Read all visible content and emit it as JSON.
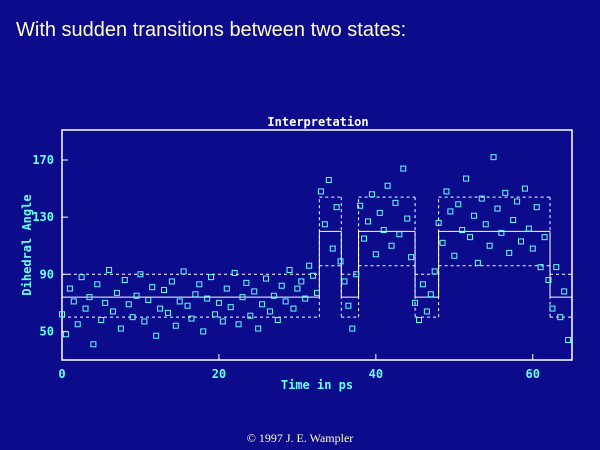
{
  "chart_data": {
    "type": "scatter",
    "slide_title": "With sudden transitions between two states:",
    "title": "Interpretation",
    "x_label": "Time in ps",
    "y_label": "Dihedral Angle",
    "footer": "© 1997 J. E. Wampler",
    "color": "#66ffff",
    "xlim": [
      0,
      65
    ],
    "ylim": [
      30,
      191
    ],
    "xticks": [
      0,
      20,
      40,
      60
    ],
    "yticks": [
      50,
      90,
      130,
      170
    ],
    "x": [
      0,
      0.5,
      1,
      1.5,
      2,
      2.5,
      3,
      3.5,
      4,
      4.5,
      5,
      5.5,
      6,
      6.5,
      7,
      7.5,
      8,
      8.5,
      9,
      9.5,
      10,
      10.5,
      11,
      11.5,
      12,
      12.5,
      13,
      13.5,
      14,
      14.5,
      15,
      15.5,
      16,
      16.5,
      17,
      17.5,
      18,
      18.5,
      19,
      19.5,
      20,
      20.5,
      21,
      21.5,
      22,
      22.5,
      23,
      23.5,
      24,
      24.5,
      25,
      25.5,
      26,
      26.5,
      27,
      27.5,
      28,
      28.5,
      29,
      29.5,
      30,
      30.5,
      31,
      31.5,
      32,
      32.5,
      33,
      33.5,
      34,
      34.5,
      35,
      35.5,
      36,
      36.5,
      37,
      37.5,
      38,
      38.5,
      39,
      39.5,
      40,
      40.5,
      41,
      41.5,
      42,
      42.5,
      43,
      43.5,
      44,
      44.5,
      45,
      45.5,
      46,
      46.5,
      47,
      47.5,
      48,
      48.5,
      49,
      49.5,
      50,
      50.5,
      51,
      51.5,
      52,
      52.5,
      53,
      53.5,
      54,
      54.5,
      55,
      55.5,
      56,
      56.5,
      57,
      57.5,
      58,
      58.5,
      59,
      59.5,
      60,
      60.5,
      61,
      61.5,
      62,
      62.5,
      63,
      63.5,
      64,
      64.5
    ],
    "values": [
      62,
      48,
      80,
      71,
      55,
      88,
      66,
      74,
      41,
      83,
      58,
      70,
      93,
      64,
      77,
      52,
      86,
      69,
      60,
      75,
      90,
      57,
      72,
      81,
      47,
      66,
      79,
      63,
      85,
      54,
      71,
      92,
      68,
      59,
      76,
      83,
      50,
      73,
      88,
      62,
      70,
      57,
      80,
      67,
      91,
      55,
      74,
      84,
      61,
      78,
      52,
      69,
      87,
      64,
      75,
      58,
      82,
      71,
      93,
      66,
      80,
      85,
      73,
      96,
      89,
      77,
      148,
      125,
      156,
      108,
      137,
      99,
      85,
      68,
      52,
      90,
      138,
      115,
      127,
      146,
      104,
      133,
      121,
      152,
      110,
      140,
      118,
      164,
      129,
      102,
      70,
      58,
      83,
      64,
      76,
      92,
      126,
      112,
      148,
      134,
      103,
      139,
      121,
      157,
      116,
      131,
      98,
      143,
      125,
      110,
      172,
      136,
      119,
      147,
      105,
      128,
      141,
      113,
      150,
      122,
      108,
      137,
      95,
      116,
      86,
      66,
      95,
      60,
      78,
      44
    ],
    "segments": [
      {
        "x": [
          0,
          32.8
        ],
        "mean": 74,
        "upper": 90,
        "lower": 60
      },
      {
        "x": [
          32.8,
          35.6
        ],
        "mean": 120,
        "upper": 144,
        "lower": 96
      },
      {
        "x": [
          35.6,
          37.8
        ],
        "mean": 74,
        "upper": 90,
        "lower": 60
      },
      {
        "x": [
          37.8,
          45
        ],
        "mean": 120,
        "upper": 144,
        "lower": 96
      },
      {
        "x": [
          45,
          48
        ],
        "mean": 74,
        "upper": 90,
        "lower": 60
      },
      {
        "x": [
          48,
          62.2
        ],
        "mean": 120,
        "upper": 144,
        "lower": 96
      },
      {
        "x": [
          62.2,
          65
        ],
        "mean": 74,
        "upper": 90,
        "lower": 60
      }
    ]
  }
}
